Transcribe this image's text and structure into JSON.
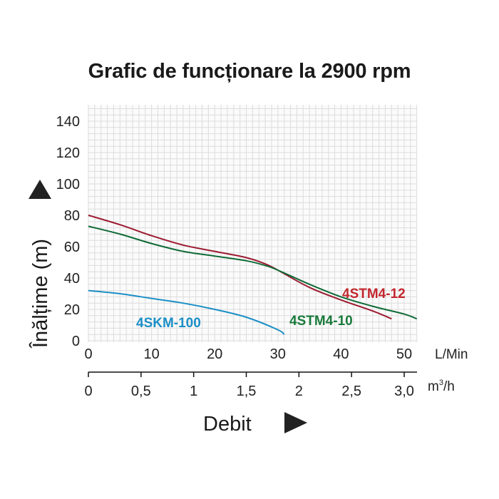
{
  "title": "Grafic de funcționare la 2900 rpm",
  "y_axis": {
    "label": "Înălțime (m)",
    "ticks": [
      "0",
      "20",
      "40",
      "60",
      "80",
      "100",
      "120",
      "140"
    ]
  },
  "x_axis_primary": {
    "unit": "L/Min",
    "ticks": [
      "0",
      "10",
      "20",
      "30",
      "40",
      "50"
    ]
  },
  "x_axis_secondary": {
    "unit_base": "m",
    "unit_sup": "3",
    "unit_suffix": "/h",
    "ticks": [
      "0",
      "0,5",
      "1",
      "1,5",
      "2",
      "2,5",
      "3,0"
    ]
  },
  "x_axis_title": "Debit",
  "series_labels": {
    "s1": "4STM4-12",
    "s2": "4STM4-10",
    "s3": "4SKM-100"
  },
  "colors": {
    "s1": "#9b1b30",
    "s1_label": "#c1272d",
    "s2": "#0f6b37",
    "s2_label": "#1a7a3c",
    "s3": "#1b8fc6",
    "grid": "#dcdcdc"
  },
  "chart_data": {
    "type": "line",
    "title": "Grafic de funcționare la 2900 rpm",
    "xlabel": "Debit (L/Min)",
    "x2label": "Debit (m³/h)",
    "ylabel": "Înălțime (m)",
    "xlim": [
      0,
      52
    ],
    "ylim": [
      0,
      150
    ],
    "x_ticks": [
      0,
      10,
      20,
      30,
      40,
      50
    ],
    "x2_ticks": [
      "0",
      "0,5",
      "1",
      "1,5",
      "2",
      "2,5",
      "3,0"
    ],
    "y_ticks": [
      0,
      20,
      40,
      60,
      80,
      100,
      120,
      140
    ],
    "grid": true,
    "series": [
      {
        "name": "4STM4-12",
        "color": "#9b1b30",
        "x": [
          0,
          5,
          10,
          15,
          20,
          25,
          28,
          30,
          35,
          40,
          45,
          48
        ],
        "y": [
          80,
          74,
          67,
          61,
          57,
          53,
          49,
          45,
          34,
          26,
          19,
          14
        ]
      },
      {
        "name": "4STM4-10",
        "color": "#0f6b37",
        "x": [
          0,
          5,
          10,
          15,
          20,
          25,
          28,
          30,
          35,
          40,
          45,
          50,
          52
        ],
        "y": [
          73,
          68,
          62,
          57,
          54,
          51,
          48,
          45,
          36,
          28,
          22,
          17,
          14
        ]
      },
      {
        "name": "4SKM-100",
        "color": "#1b8fc6",
        "x": [
          0,
          5,
          10,
          15,
          20,
          25,
          30,
          31
        ],
        "y": [
          32,
          30,
          27,
          24,
          20,
          15,
          7,
          4
        ]
      }
    ]
  }
}
